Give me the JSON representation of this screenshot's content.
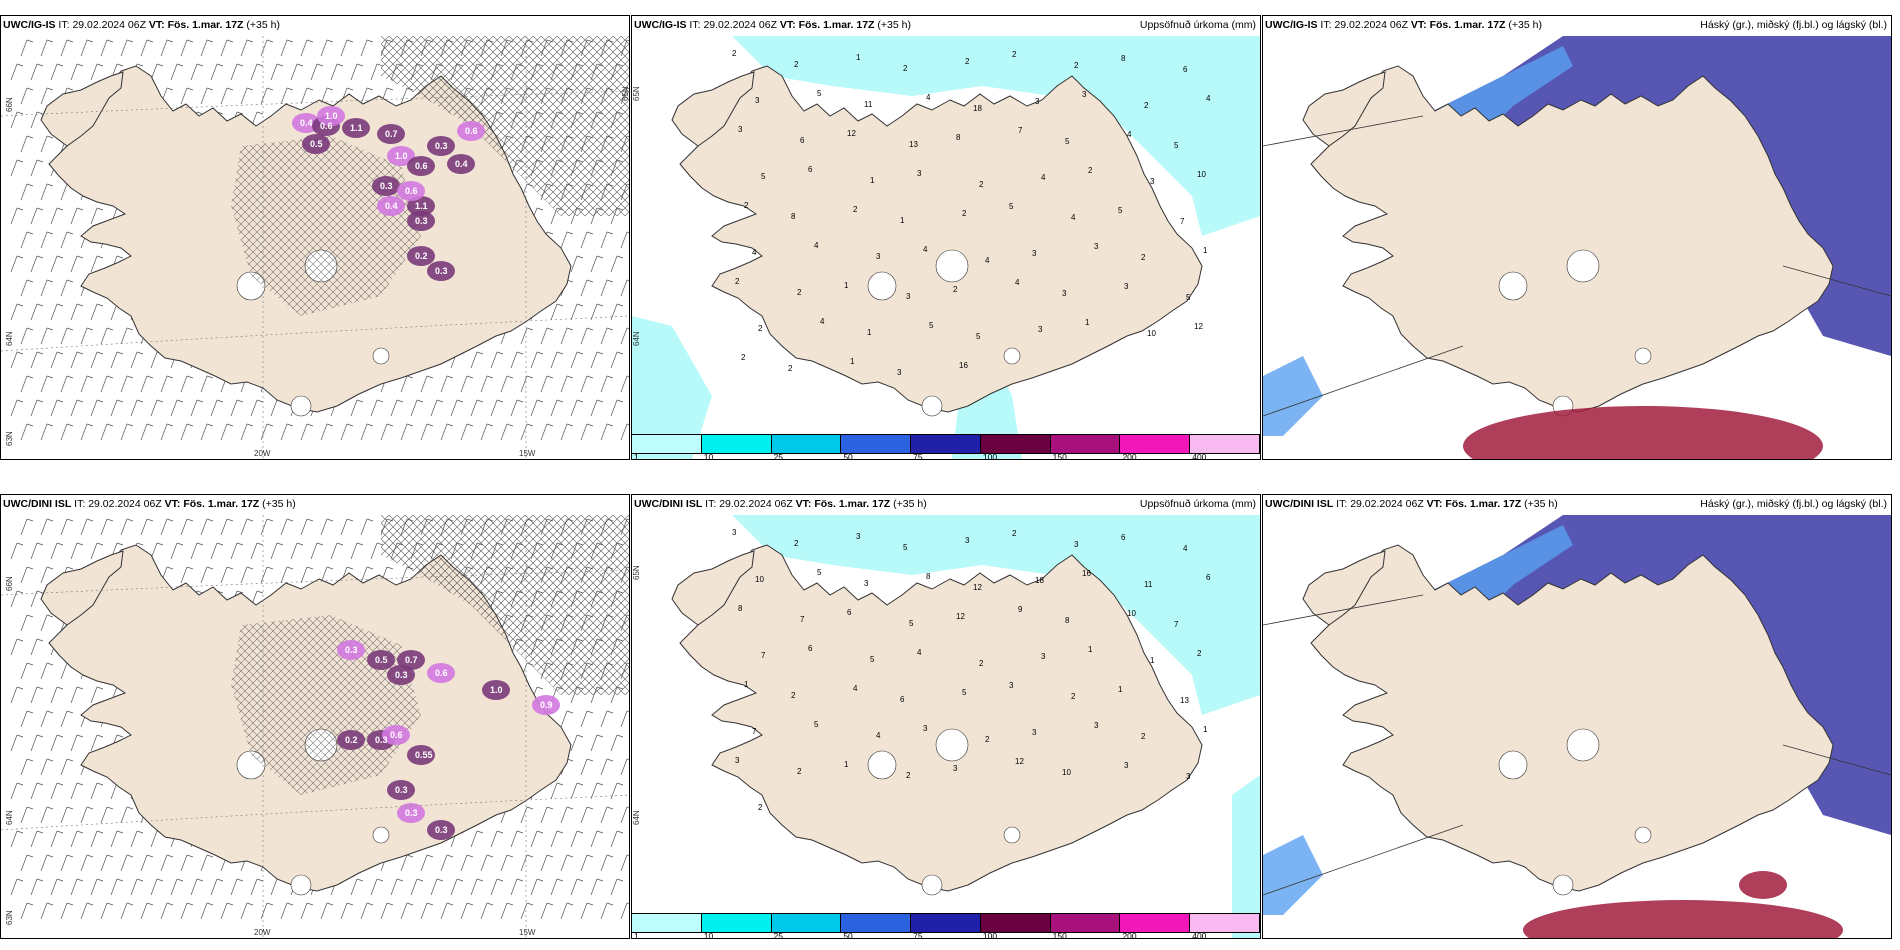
{
  "panels": [
    {
      "model": "UWC/IG-IS",
      "it_label": "IT:",
      "it": "29.02.2024 06Z",
      "vt_label": "VT:",
      "vt": "Fös. 1.mar. 17Z",
      "lead": "(+35 h)",
      "right_label": "",
      "type": "wind",
      "lat_labels": [
        "66N",
        "64N",
        "63N"
      ],
      "lon_labels": [
        "20W",
        "15W"
      ],
      "side_lat": [
        "65N"
      ],
      "values": [
        "0.4",
        "0.6",
        "0.5",
        "1.0",
        "1.1",
        "0.7",
        "0.6",
        "0.3",
        "0.4",
        "1.0",
        "0.6",
        "0.3",
        "0.4",
        "0.3",
        "1.1",
        "0.6",
        "0.2",
        "0.3"
      ]
    },
    {
      "model": "UWC/IG-IS",
      "it_label": "IT:",
      "it": "29.02.2024 06Z",
      "vt_label": "VT:",
      "vt": "Fös. 1.mar. 17Z",
      "lead": "(+35 h)",
      "right_label": "Uppsöfnuð úrkoma (mm)",
      "type": "precip",
      "side_lat": [
        "65N",
        "64N"
      ],
      "values": [
        "2",
        "2",
        "1",
        "2",
        "2",
        "2",
        "2",
        "8",
        "6",
        "3",
        "5",
        "11",
        "4",
        "18",
        "3",
        "3",
        "2",
        "4",
        "3",
        "6",
        "12",
        "13",
        "8",
        "7",
        "5",
        "4",
        "5",
        "5",
        "6",
        "1",
        "3",
        "2",
        "4",
        "2",
        "3",
        "10",
        "2",
        "8",
        "2",
        "1",
        "2",
        "5",
        "4",
        "5",
        "7",
        "4",
        "4",
        "3",
        "4",
        "4",
        "3",
        "3",
        "2",
        "1",
        "2",
        "2",
        "1",
        "3",
        "2",
        "4",
        "3",
        "3",
        "5",
        "2",
        "4",
        "1",
        "5",
        "5",
        "3",
        "1",
        "10",
        "12",
        "2",
        "2",
        "1",
        "3",
        "16"
      ]
    },
    {
      "model": "UWC/IG-IS",
      "it_label": "IT:",
      "it": "29.02.2024 06Z",
      "vt_label": "VT:",
      "vt": "Fös. 1.mar. 17Z",
      "lead": "(+35 h)",
      "right_label": "Háský (gr.), miðský (fj.bl.) og lágský (bl.)",
      "type": "cloud"
    },
    {
      "model": "UWC/DINI ISL",
      "it_label": "IT:",
      "it": "29.02.2024 06Z",
      "vt_label": "VT:",
      "vt": "Fös. 1.mar. 17Z",
      "lead": "(+35 h)",
      "right_label": "",
      "type": "wind",
      "lat_labels": [
        "66N",
        "64N",
        "63N"
      ],
      "lon_labels": [
        "20W",
        "15W"
      ],
      "values": [
        "0.3",
        "0.5",
        "0.7",
        "0.6",
        "0.3",
        "1.0",
        "0.9",
        "0.2",
        "0.3",
        "0.6",
        "0.55",
        "0.3",
        "0.3",
        "0.3"
      ]
    },
    {
      "model": "UWC/DINI ISL",
      "it_label": "IT:",
      "it": "29.02.2024 06Z",
      "vt_label": "VT:",
      "vt": "Fös. 1.mar. 17Z",
      "lead": "(+35 h)",
      "right_label": "Uppsöfnuð úrkoma (mm)",
      "type": "precip",
      "side_lat": [
        "65N",
        "64N"
      ],
      "values": [
        "3",
        "2",
        "3",
        "5",
        "3",
        "2",
        "3",
        "6",
        "4",
        "10",
        "5",
        "3",
        "8",
        "12",
        "18",
        "16",
        "11",
        "6",
        "8",
        "7",
        "6",
        "5",
        "12",
        "9",
        "8",
        "10",
        "7",
        "7",
        "6",
        "5",
        "4",
        "2",
        "3",
        "1",
        "1",
        "2",
        "1",
        "2",
        "4",
        "6",
        "5",
        "3",
        "2",
        "1",
        "13",
        "7",
        "5",
        "4",
        "3",
        "2",
        "3",
        "3",
        "2",
        "1",
        "3",
        "2",
        "1",
        "2",
        "3",
        "12",
        "10",
        "3",
        "3",
        "2"
      ]
    },
    {
      "model": "UWC/DINI ISL",
      "it_label": "IT:",
      "it": "29.02.2024 06Z",
      "vt_label": "VT:",
      "vt": "Fös. 1.mar. 17Z",
      "lead": "(+35 h)",
      "right_label": "Háský (gr.), miðský (fj.bl.) og lágský (bl.)",
      "type": "cloud"
    }
  ],
  "precip_legend": {
    "colors": [
      "#bffcfc",
      "#00f0f0",
      "#00c8e8",
      "#2a62e0",
      "#2020a8",
      "#6a0040",
      "#a8107c",
      "#f018b8",
      "#f8b8f0"
    ],
    "ticks": [
      "1",
      "10",
      "25",
      "50",
      "75",
      "100",
      "150",
      "200",
      "400"
    ]
  },
  "colors": {
    "land": "#f2e4d5",
    "coast": "#333333",
    "precip_light": "#b8fafa",
    "snow": "#d278e0",
    "snow_dark": "#7a3a7a",
    "cloud_low": "#3a3aa6",
    "cloud_mid": "#5aa0f0",
    "cloud_high": "#a01c3c"
  }
}
